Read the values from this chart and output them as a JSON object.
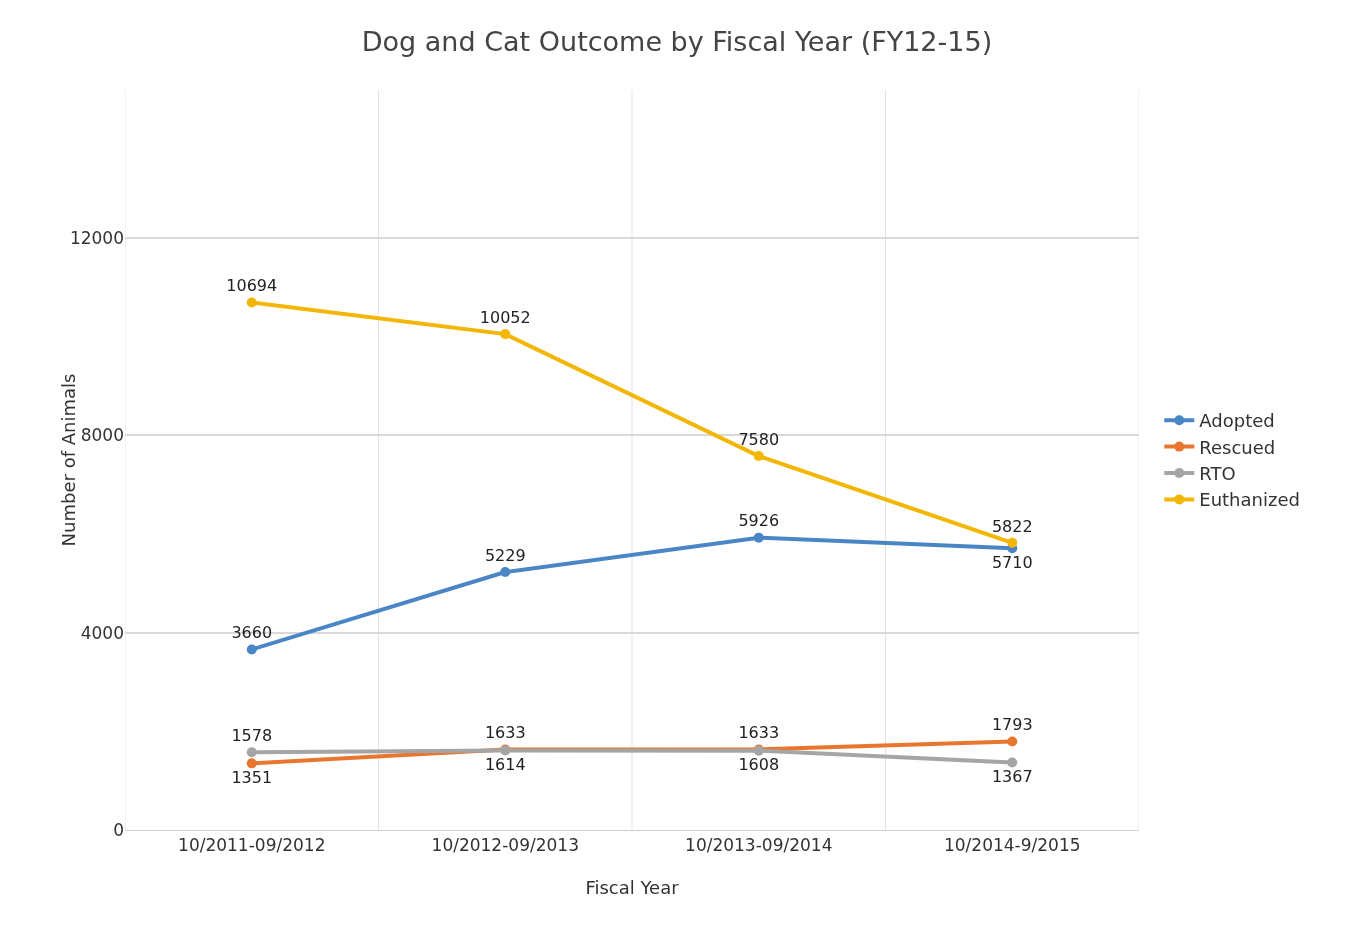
{
  "chart_data": {
    "type": "line",
    "title": "Dog and Cat Outcome by Fiscal Year (FY12-15)",
    "xlabel": "Fiscal Year",
    "ylabel": "Number of Animals",
    "categories": [
      "10/2011-09/2012",
      "10/2012-09/2013",
      "10/2013-09/2014",
      "10/2014-9/2015"
    ],
    "series": [
      {
        "name": "Adopted",
        "color": "#4a86c5",
        "values": [
          3660,
          5229,
          5926,
          5710
        ]
      },
      {
        "name": "Rescued",
        "color": "#e8762f",
        "values": [
          1351,
          1633,
          1633,
          1793
        ]
      },
      {
        "name": "RTO",
        "color": "#a5a5a5",
        "values": [
          1578,
          1614,
          1608,
          1367
        ]
      },
      {
        "name": "Euthanized",
        "color": "#f2b705",
        "values": [
          10694,
          10052,
          7580,
          5822
        ]
      }
    ],
    "ylim": [
      0,
      15000
    ],
    "yticks": [
      0,
      4000,
      8000,
      12000
    ],
    "grid": true,
    "legend": "right",
    "marker": "circle",
    "line_style": "solid",
    "data_labels": true
  }
}
